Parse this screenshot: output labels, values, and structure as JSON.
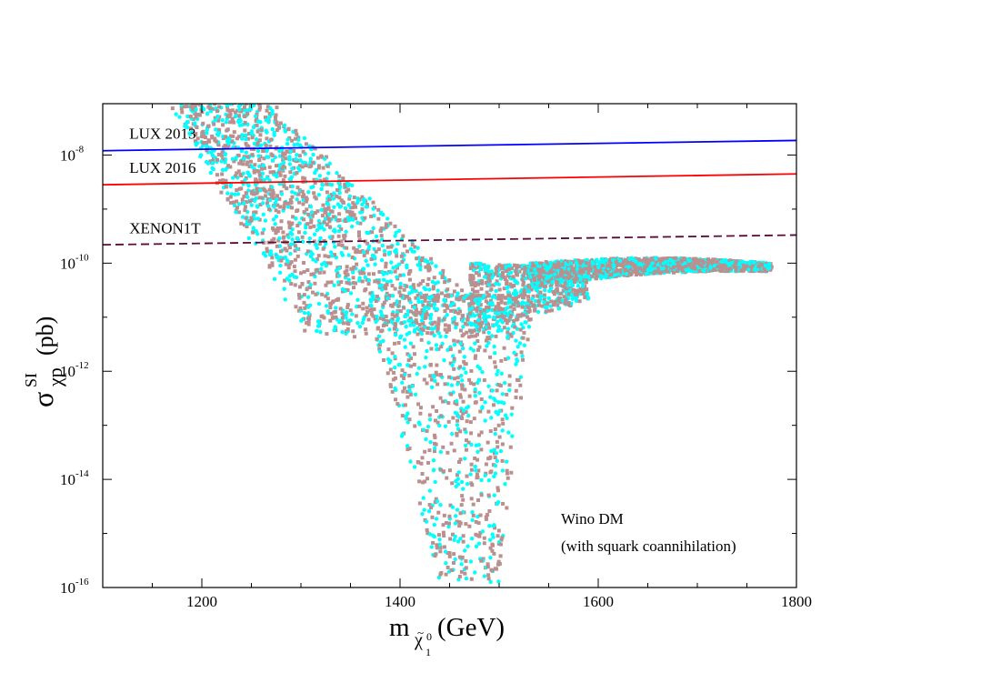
{
  "chart_data": {
    "type": "scatter",
    "xlabel": {
      "main": "m",
      "sub_base": "χ",
      "sub_tilde": "~",
      "sub_sup": "0",
      "sub_sub": "1",
      "unit": "(GeV)"
    },
    "ylabel": {
      "main": "σ",
      "sup": "SI",
      "sub": "χp",
      "unit": "(pb)"
    },
    "xlim": [
      1100,
      1800
    ],
    "ylim_log10": [
      -16,
      -7.05
    ],
    "x_ticks": [
      1200,
      1400,
      1600,
      1800
    ],
    "y_ticks": [
      {
        "exp": -8,
        "base": "10",
        "sup": "-8"
      },
      {
        "exp": -10,
        "base": "10",
        "sup": "-10"
      },
      {
        "exp": -12,
        "base": "10",
        "sup": "-12"
      },
      {
        "exp": -14,
        "base": "10",
        "sup": "-14"
      },
      {
        "exp": -16,
        "base": "10",
        "sup": "-16"
      }
    ],
    "limits": [
      {
        "name": "LUX 2013",
        "color": "#0000ff",
        "dash": false,
        "x": [
          1100,
          1800
        ],
        "log10_y": [
          -7.92,
          -7.73
        ],
        "label_at": [
          1125,
          -7.8
        ]
      },
      {
        "name": "LUX 2016",
        "color": "#ff0000",
        "dash": false,
        "x": [
          1100,
          1800
        ],
        "log10_y": [
          -8.55,
          -8.35
        ],
        "label_at": [
          1125,
          -8.43
        ]
      },
      {
        "name": "XENON1T",
        "color": "#5a0a3c",
        "dash": true,
        "x": [
          1100,
          1800
        ],
        "log10_y": [
          -9.66,
          -9.48
        ],
        "label_at": [
          1125,
          -9.55
        ]
      }
    ],
    "series": [
      {
        "name": "wino (cyan)",
        "color": "#00ffff",
        "marker": "circle"
      },
      {
        "name": "wino (brown)",
        "color": "#bc8f8f",
        "marker": "square"
      }
    ],
    "band_description": "wino DM points: steep band from ~1200 GeV at 1e-7 down to a minimum near 1440–1530 GeV (1e-16), rising to a plateau ~1e-10 from 1480 to 1775 GeV",
    "annotation": [
      "Wino DM",
      "(with squark coannihilation)"
    ]
  }
}
